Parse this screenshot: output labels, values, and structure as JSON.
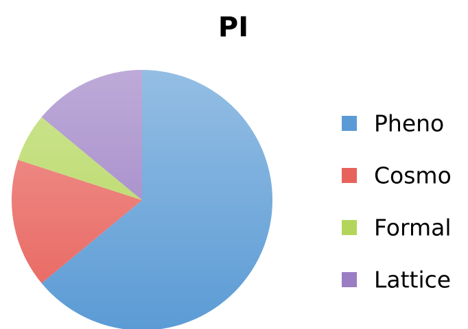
{
  "chart_data": {
    "type": "pie",
    "title": "PI",
    "categories": [
      "Pheno",
      "Cosmo",
      "Formal",
      "Lattice"
    ],
    "values": [
      64,
      16,
      6,
      14
    ],
    "colors": [
      "#5b9bd5",
      "#e8625c",
      "#b3d65a",
      "#9a7dc3"
    ],
    "legend": "right"
  }
}
